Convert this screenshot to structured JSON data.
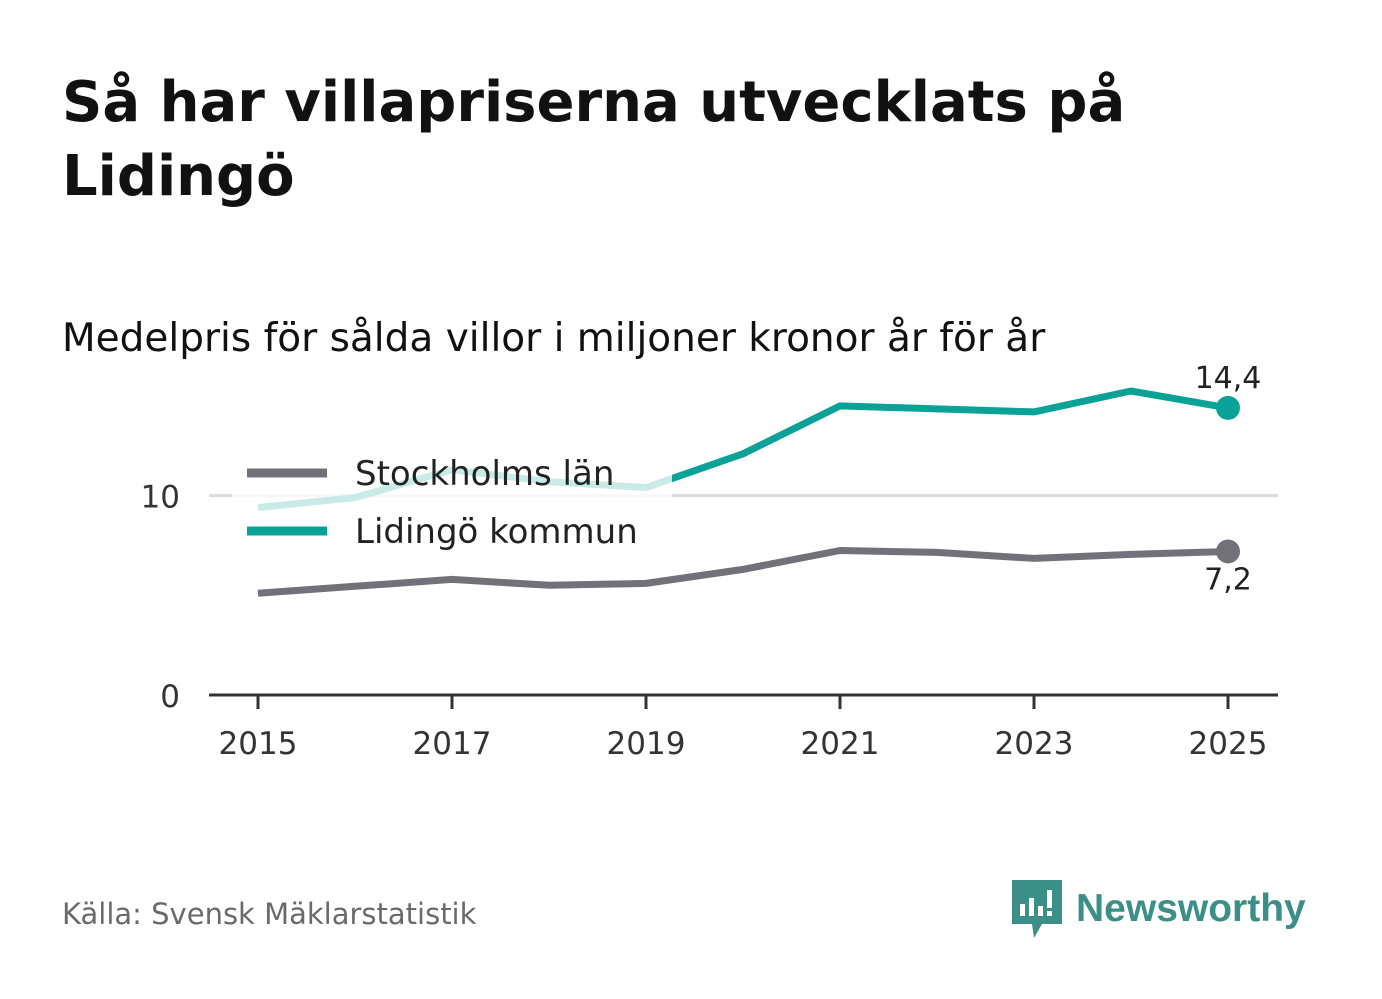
{
  "title": "Så har villapriserna utvecklats på Lidingö",
  "subtitle": "Medelpris för sålda villor i miljoner kronor år för år",
  "source": "Källa: Svensk Mäklarstatistik",
  "brand": "Newsworthy",
  "colors": {
    "stockholm": "#727179",
    "lidingo": "#0aa296",
    "lidingo_faded": "#cbe9e6",
    "axis": "#333333",
    "grid": "#dcdcdc",
    "brand": "#3b8f87"
  },
  "chart_data": {
    "type": "line",
    "x": [
      2015,
      2016,
      2017,
      2018,
      2019,
      2020,
      2021,
      2022,
      2023,
      2024,
      2025
    ],
    "x_ticks": [
      2015,
      2017,
      2019,
      2021,
      2023,
      2025
    ],
    "x_tick_labels": [
      "2015",
      "2017",
      "2019",
      "2021",
      "2023",
      "2025"
    ],
    "y_ticks": [
      0,
      10
    ],
    "y_tick_labels": [
      "0",
      "10"
    ],
    "ylim": [
      0,
      16
    ],
    "xlim": [
      2014.5,
      2025.5
    ],
    "series": [
      {
        "name": "Stockholms län",
        "key": "stockholm",
        "values": [
          5.1,
          5.45,
          5.8,
          5.5,
          5.6,
          6.3,
          7.25,
          7.15,
          6.85,
          7.05,
          7.2
        ],
        "end_label": "7,2"
      },
      {
        "name": "Lidingö kommun",
        "key": "lidingo",
        "values": [
          9.4,
          9.9,
          11.3,
          10.7,
          10.4,
          12.1,
          14.5,
          14.35,
          14.2,
          15.25,
          14.4
        ],
        "end_label": "14,4"
      }
    ],
    "legend": [
      {
        "label": "Stockholms län",
        "key": "stockholm"
      },
      {
        "label": "Lidingö kommun",
        "key": "lidingo"
      }
    ],
    "legend_position": "top-left",
    "grid": true
  }
}
